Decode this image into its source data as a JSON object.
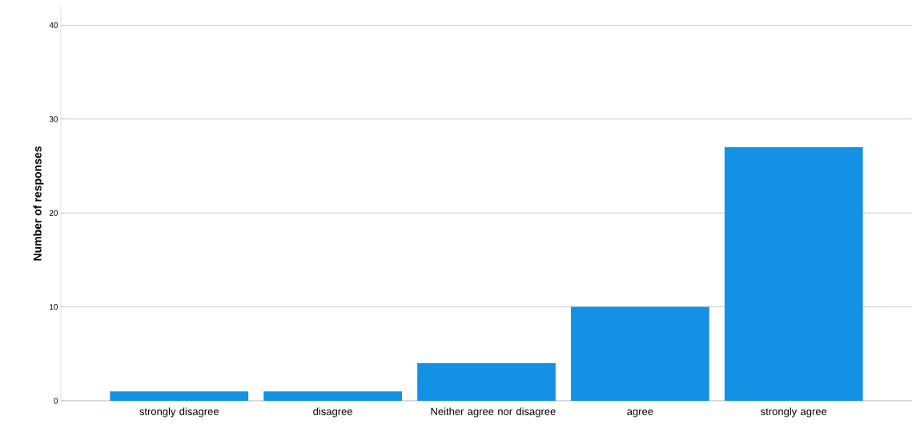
{
  "chart_data": {
    "type": "bar",
    "ylabel": "Number of responses",
    "categories": [
      "strongly disagree",
      "disagree",
      "Neither agree nor disagree",
      "agree",
      "strongly agree"
    ],
    "values": [
      1,
      1,
      4,
      10,
      27
    ],
    "color": "#1490e4",
    "ylim": [
      0,
      42
    ],
    "yticks": [
      0,
      10,
      20,
      30,
      40
    ],
    "grid": "y"
  }
}
